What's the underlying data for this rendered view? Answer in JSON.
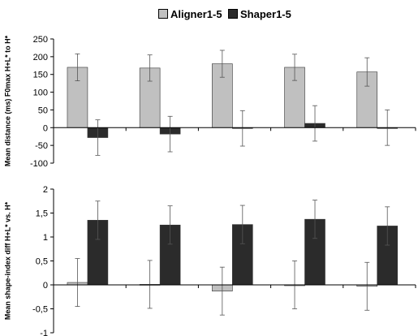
{
  "legend": {
    "items": [
      {
        "label": "Aligner1-5",
        "color": "#c0c0c0"
      },
      {
        "label": "Shaper1-5",
        "color": "#2b2b2b"
      }
    ]
  },
  "colors": {
    "aligner": "#c0c0c0",
    "shaper": "#2b2b2b",
    "axis": "#000000",
    "errorbar": "#555555"
  },
  "chart_data": [
    {
      "type": "bar",
      "ylabel": "Mean distance (ms) F0max H+L* to H*",
      "ylim": [
        -100,
        250
      ],
      "yticks": [
        250,
        200,
        150,
        100,
        50,
        0,
        -50,
        -100
      ],
      "ytick_labels": [
        "250",
        "200",
        "150",
        "100",
        "50",
        "0",
        "-50",
        "-100"
      ],
      "grid": false,
      "categories": [
        "",
        "",
        "",
        "",
        ""
      ],
      "series": [
        {
          "name": "Aligner1-5",
          "values": [
            170,
            168,
            180,
            170,
            157
          ],
          "error": [
            38,
            37,
            38,
            37,
            40
          ]
        },
        {
          "name": "Shaper1-5",
          "values": [
            -28,
            -18,
            -2,
            12,
            0
          ],
          "error": [
            50,
            50,
            50,
            50,
            50
          ]
        }
      ]
    },
    {
      "type": "bar",
      "ylabel": "Mean shape-index diff H+L* vs. H*",
      "ylim": [
        -1,
        2
      ],
      "yticks": [
        2,
        1.5,
        1,
        0.5,
        0,
        -0.5,
        -1
      ],
      "ytick_labels": [
        "2",
        "1,5",
        "1",
        "0,5",
        "0",
        "-0,5",
        "-1"
      ],
      "grid": false,
      "categories": [
        "",
        "",
        "",
        "",
        ""
      ],
      "series": [
        {
          "name": "Aligner1-5",
          "values": [
            0.05,
            0.01,
            -0.13,
            0.0,
            -0.03
          ],
          "error": [
            0.5,
            0.5,
            0.5,
            0.5,
            0.5
          ]
        },
        {
          "name": "Shaper1-5",
          "values": [
            1.35,
            1.25,
            1.26,
            1.37,
            1.23
          ],
          "error": [
            0.4,
            0.4,
            0.4,
            0.4,
            0.4
          ]
        }
      ]
    }
  ]
}
